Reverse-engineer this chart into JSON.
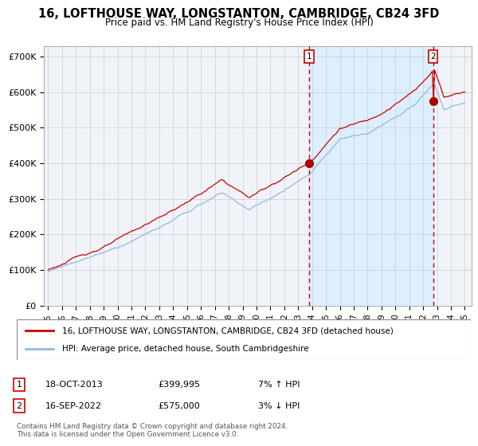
{
  "title": "16, LOFTHOUSE WAY, LONGSTANTON, CAMBRIDGE, CB24 3FD",
  "subtitle": "Price paid vs. HM Land Registry's House Price Index (HPI)",
  "title_fontsize": 10.5,
  "subtitle_fontsize": 8.5,
  "ylabel_ticks": [
    "£0",
    "£100K",
    "£200K",
    "£300K",
    "£400K",
    "£500K",
    "£600K",
    "£700K"
  ],
  "ytick_values": [
    0,
    100000,
    200000,
    300000,
    400000,
    500000,
    600000,
    700000
  ],
  "ylim": [
    0,
    730000
  ],
  "xlim_start": 1994.7,
  "xlim_end": 2025.5,
  "sale1_date_num": 2013.8,
  "sale1_price": 399995,
  "sale1_label": "1",
  "sale2_date_num": 2022.71,
  "sale2_price": 575000,
  "sale2_label": "2",
  "sale1_date_str": "18-OCT-2013",
  "sale1_price_str": "£399,995",
  "sale1_hpi_str": "7% ↑ HPI",
  "sale2_date_str": "16-SEP-2022",
  "sale2_price_str": "£575,000",
  "sale2_hpi_str": "3% ↓ HPI",
  "hpi_line_color": "#93b8d8",
  "price_line_color": "#cc0000",
  "dot_color": "#aa0000",
  "dashed_line_color": "#cc0000",
  "shade_color": "#ddeeff",
  "grid_color": "#cccccc",
  "legend_label1": "16, LOFTHOUSE WAY, LONGSTANTON, CAMBRIDGE, CB24 3FD (detached house)",
  "legend_label2": "HPI: Average price, detached house, South Cambridgeshire",
  "footer": "Contains HM Land Registry data © Crown copyright and database right 2024.\nThis data is licensed under the Open Government Licence v3.0.",
  "xtick_years": [
    1995,
    1996,
    1997,
    1998,
    1999,
    2000,
    2001,
    2002,
    2003,
    2004,
    2005,
    2006,
    2007,
    2008,
    2009,
    2010,
    2011,
    2012,
    2013,
    2014,
    2015,
    2016,
    2017,
    2018,
    2019,
    2020,
    2021,
    2022,
    2023,
    2024,
    2025
  ],
  "background_color": "#f0f4fa"
}
